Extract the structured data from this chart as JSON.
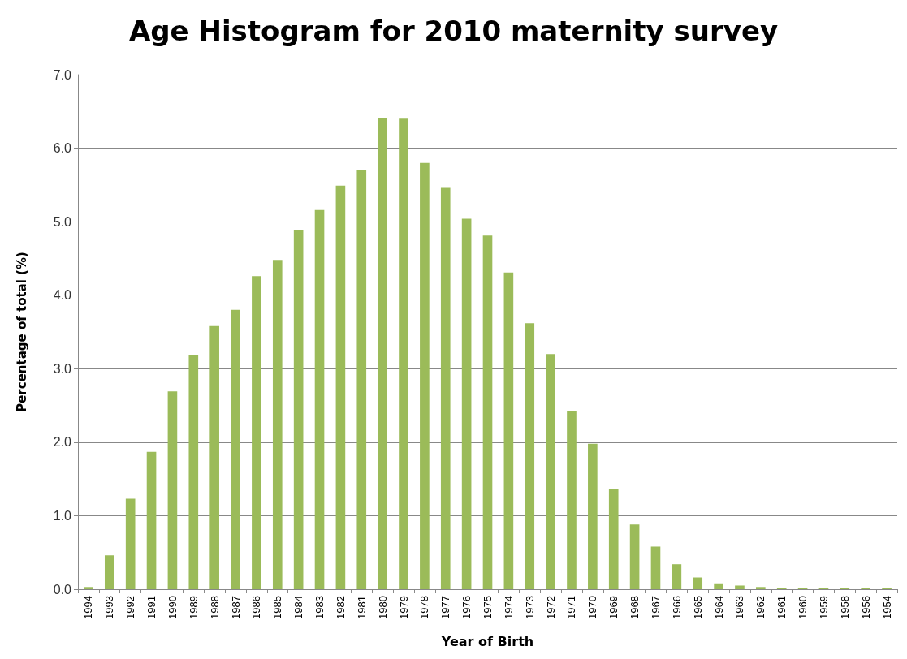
{
  "chart_data": {
    "type": "bar",
    "title": "Age Histogram for 2010 maternity survey",
    "xlabel": "Year of Birth",
    "ylabel": "Percentage of total (%)",
    "categories": [
      "1994",
      "1993",
      "1992",
      "1991",
      "1990",
      "1989",
      "1988",
      "1987",
      "1986",
      "1985",
      "1984",
      "1983",
      "1982",
      "1981",
      "1980",
      "1979",
      "1978",
      "1977",
      "1976",
      "1975",
      "1974",
      "1973",
      "1972",
      "1971",
      "1970",
      "1969",
      "1968",
      "1967",
      "1966",
      "1965",
      "1964",
      "1963",
      "1962",
      "1961",
      "1960",
      "1959",
      "1958",
      "1956",
      "1954"
    ],
    "values": [
      0.03,
      0.46,
      1.23,
      1.87,
      2.69,
      3.19,
      3.58,
      3.8,
      4.26,
      4.48,
      4.89,
      5.16,
      5.49,
      5.7,
      6.41,
      6.4,
      5.8,
      5.46,
      5.04,
      4.81,
      4.31,
      3.62,
      3.2,
      2.43,
      1.98,
      1.37,
      0.88,
      0.58,
      0.34,
      0.16,
      0.08,
      0.05,
      0.03,
      0.02,
      0.02,
      0.02,
      0.02,
      0.02,
      0.02
    ],
    "color": "#9bbb59",
    "ylim": [
      0,
      7
    ],
    "yticks": [
      {
        "value": 0,
        "label": "0.0"
      },
      {
        "value": 1,
        "label": "1.0"
      },
      {
        "value": 2,
        "label": "2.0"
      },
      {
        "value": 3,
        "label": "3.0"
      },
      {
        "value": 4,
        "label": "4.0"
      },
      {
        "value": 5,
        "label": "5.0"
      },
      {
        "value": 6,
        "label": "6.0"
      },
      {
        "value": 7,
        "label": "7.0"
      }
    ],
    "grid": "y"
  }
}
